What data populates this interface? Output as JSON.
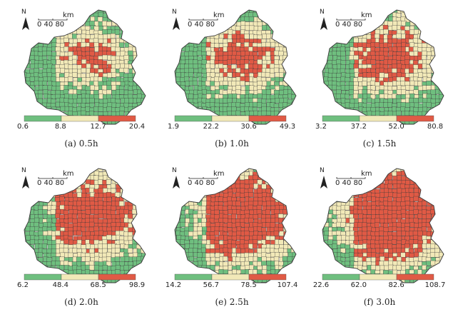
{
  "figure": {
    "colors": {
      "low": "#6fbf7f",
      "mid": "#f2e9b8",
      "high": "#e05a45",
      "border": "#3a3a3a"
    },
    "panels": [
      {
        "caption": "(a) 0.5h",
        "north": "N",
        "scale_unit": "km",
        "scale_ticks": "0 40 80",
        "legend": [
          "0.6",
          "8.8",
          "12.7",
          "20.4"
        ],
        "high_share": 0.2
      },
      {
        "caption": "(b) 1.0h",
        "north": "N",
        "scale_unit": "km",
        "scale_ticks": "0 40 80",
        "legend": [
          "1.9",
          "22.2",
          "30.6",
          "49.3"
        ],
        "high_share": 0.28
      },
      {
        "caption": "(c) 1.5h",
        "north": "N",
        "scale_unit": "km",
        "scale_ticks": "0 40 80",
        "legend": [
          "3.2",
          "37.2",
          "52.0",
          "80.8"
        ],
        "high_share": 0.35
      },
      {
        "caption": "(d) 2.0h",
        "north": "N",
        "scale_unit": "km",
        "scale_ticks": "0 40 80",
        "legend": [
          "6.2",
          "48.4",
          "68.5",
          "98.9"
        ],
        "high_share": 0.45
      },
      {
        "caption": "(e) 2.5h",
        "north": "N",
        "scale_unit": "km",
        "scale_ticks": "0 40 80",
        "legend": [
          "14.2",
          "56.7",
          "78.5",
          "107.4"
        ],
        "high_share": 0.55
      },
      {
        "caption": "(f) 3.0h",
        "north": "N",
        "scale_unit": "km",
        "scale_ticks": "0 40 80",
        "legend": [
          "22.6",
          "62.0",
          "82.6",
          "108.7"
        ],
        "high_share": 0.65
      }
    ]
  }
}
